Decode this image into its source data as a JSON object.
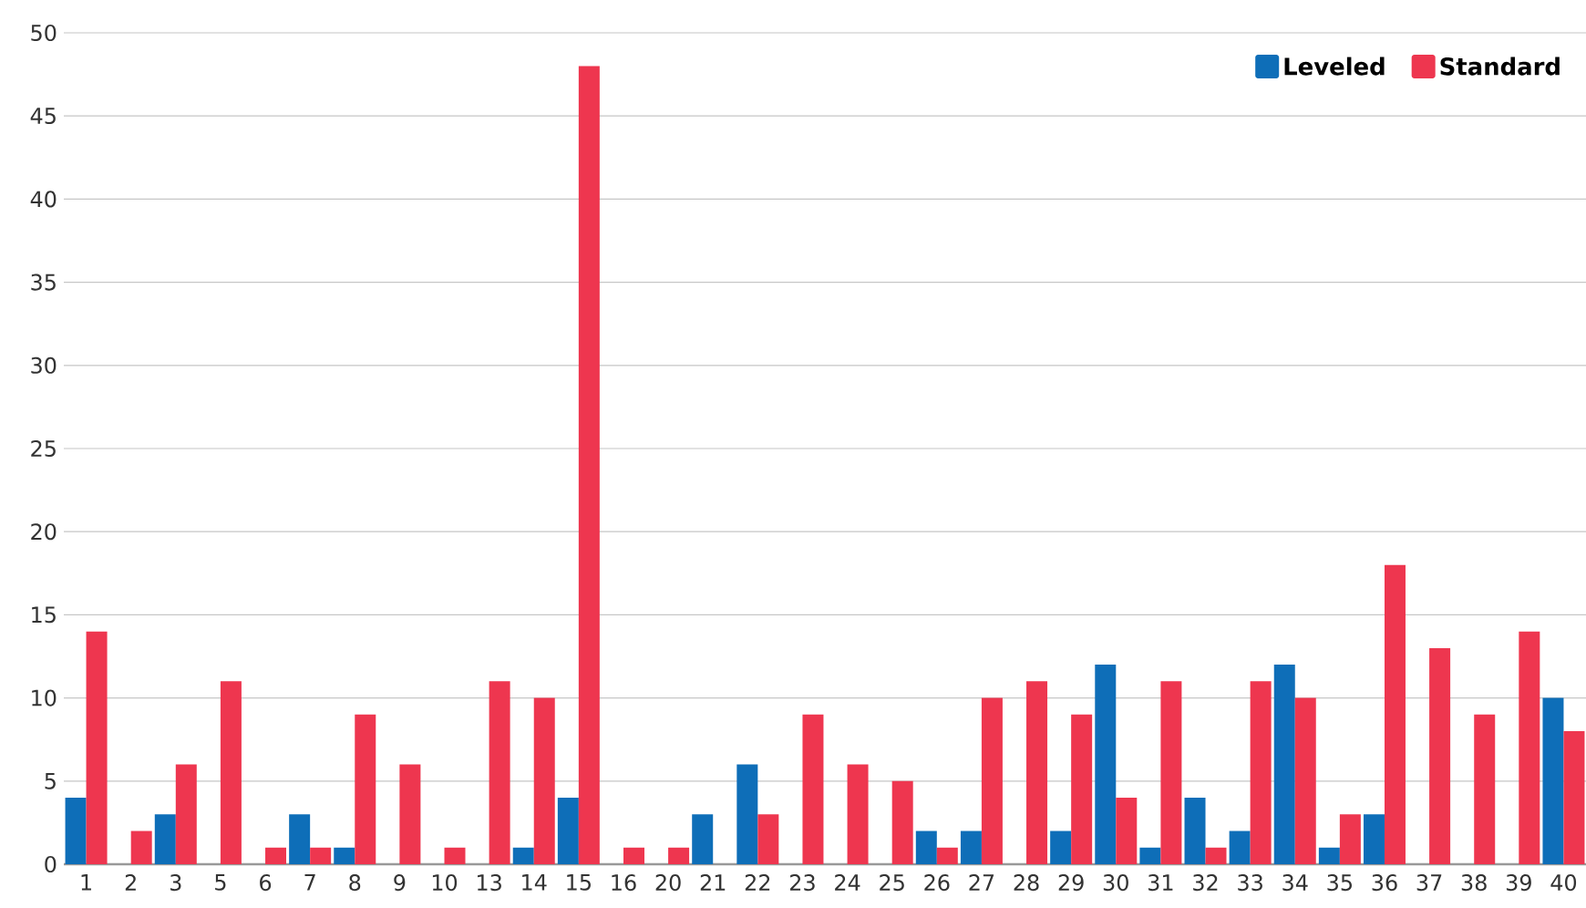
{
  "chart_data": {
    "type": "bar",
    "categories": [
      "1",
      "2",
      "3",
      "5",
      "6",
      "7",
      "8",
      "9",
      "10",
      "13",
      "14",
      "15",
      "16",
      "20",
      "21",
      "22",
      "23",
      "24",
      "25",
      "26",
      "27",
      "28",
      "29",
      "30",
      "31",
      "32",
      "33",
      "34",
      "35",
      "36",
      "37",
      "38",
      "39",
      "40"
    ],
    "series": [
      {
        "name": "Leveled",
        "color": "#0e6eb8",
        "values": [
          4,
          0,
          3,
          0,
          0,
          3,
          1,
          0,
          0,
          0,
          1,
          4,
          0,
          0,
          3,
          6,
          0,
          0,
          0,
          2,
          2,
          0,
          2,
          12,
          1,
          4,
          2,
          12,
          1,
          3,
          0,
          0,
          0,
          10
        ]
      },
      {
        "name": "Standard",
        "color": "#ee364f",
        "values": [
          14,
          2,
          6,
          11,
          1,
          1,
          9,
          6,
          1,
          11,
          10,
          48,
          1,
          1,
          0,
          3,
          9,
          6,
          5,
          1,
          10,
          11,
          9,
          4,
          11,
          1,
          11,
          10,
          3,
          18,
          13,
          9,
          14,
          8
        ]
      }
    ],
    "ylim": [
      0,
      50
    ],
    "yticks": [
      0,
      5,
      10,
      15,
      20,
      25,
      30,
      35,
      40,
      45,
      50
    ],
    "grid": "y",
    "legend": "top right"
  }
}
